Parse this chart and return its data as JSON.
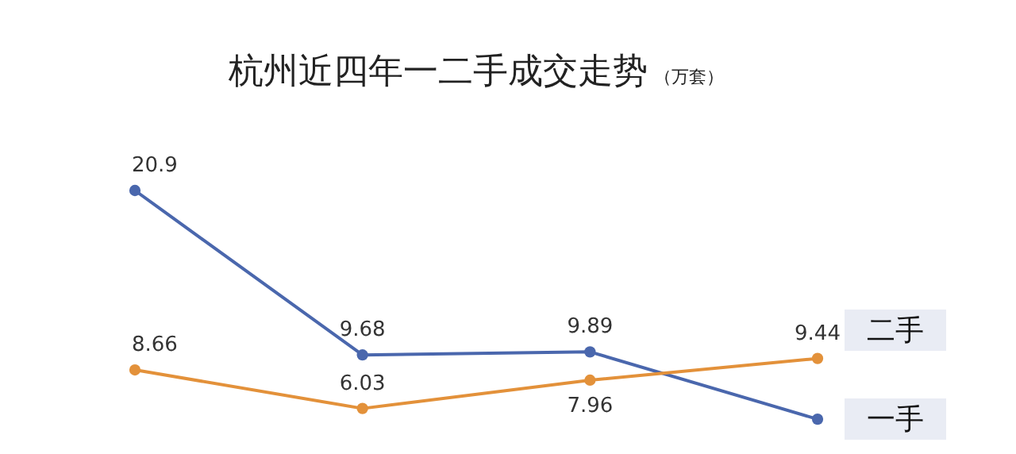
{
  "chart_data": {
    "type": "line",
    "title": "杭州近四年一二手成交走势",
    "subtitle": "（万套）",
    "categories": [
      null,
      null,
      null,
      null
    ],
    "marker": "circle",
    "legend": "right",
    "grid": false,
    "tick_labels": false,
    "series": [
      {
        "name": "一手",
        "color": "#4a67ad",
        "values": [
          20.9,
          9.68,
          9.89,
          5.3
        ],
        "value_labels": [
          "20.9",
          "9.68",
          "9.89",
          null
        ]
      },
      {
        "name": "二手",
        "color": "#e3913a",
        "values": [
          8.66,
          6.03,
          7.96,
          9.44
        ],
        "value_labels": [
          "8.66",
          "6.03",
          "7.96",
          "9.44"
        ]
      }
    ]
  }
}
